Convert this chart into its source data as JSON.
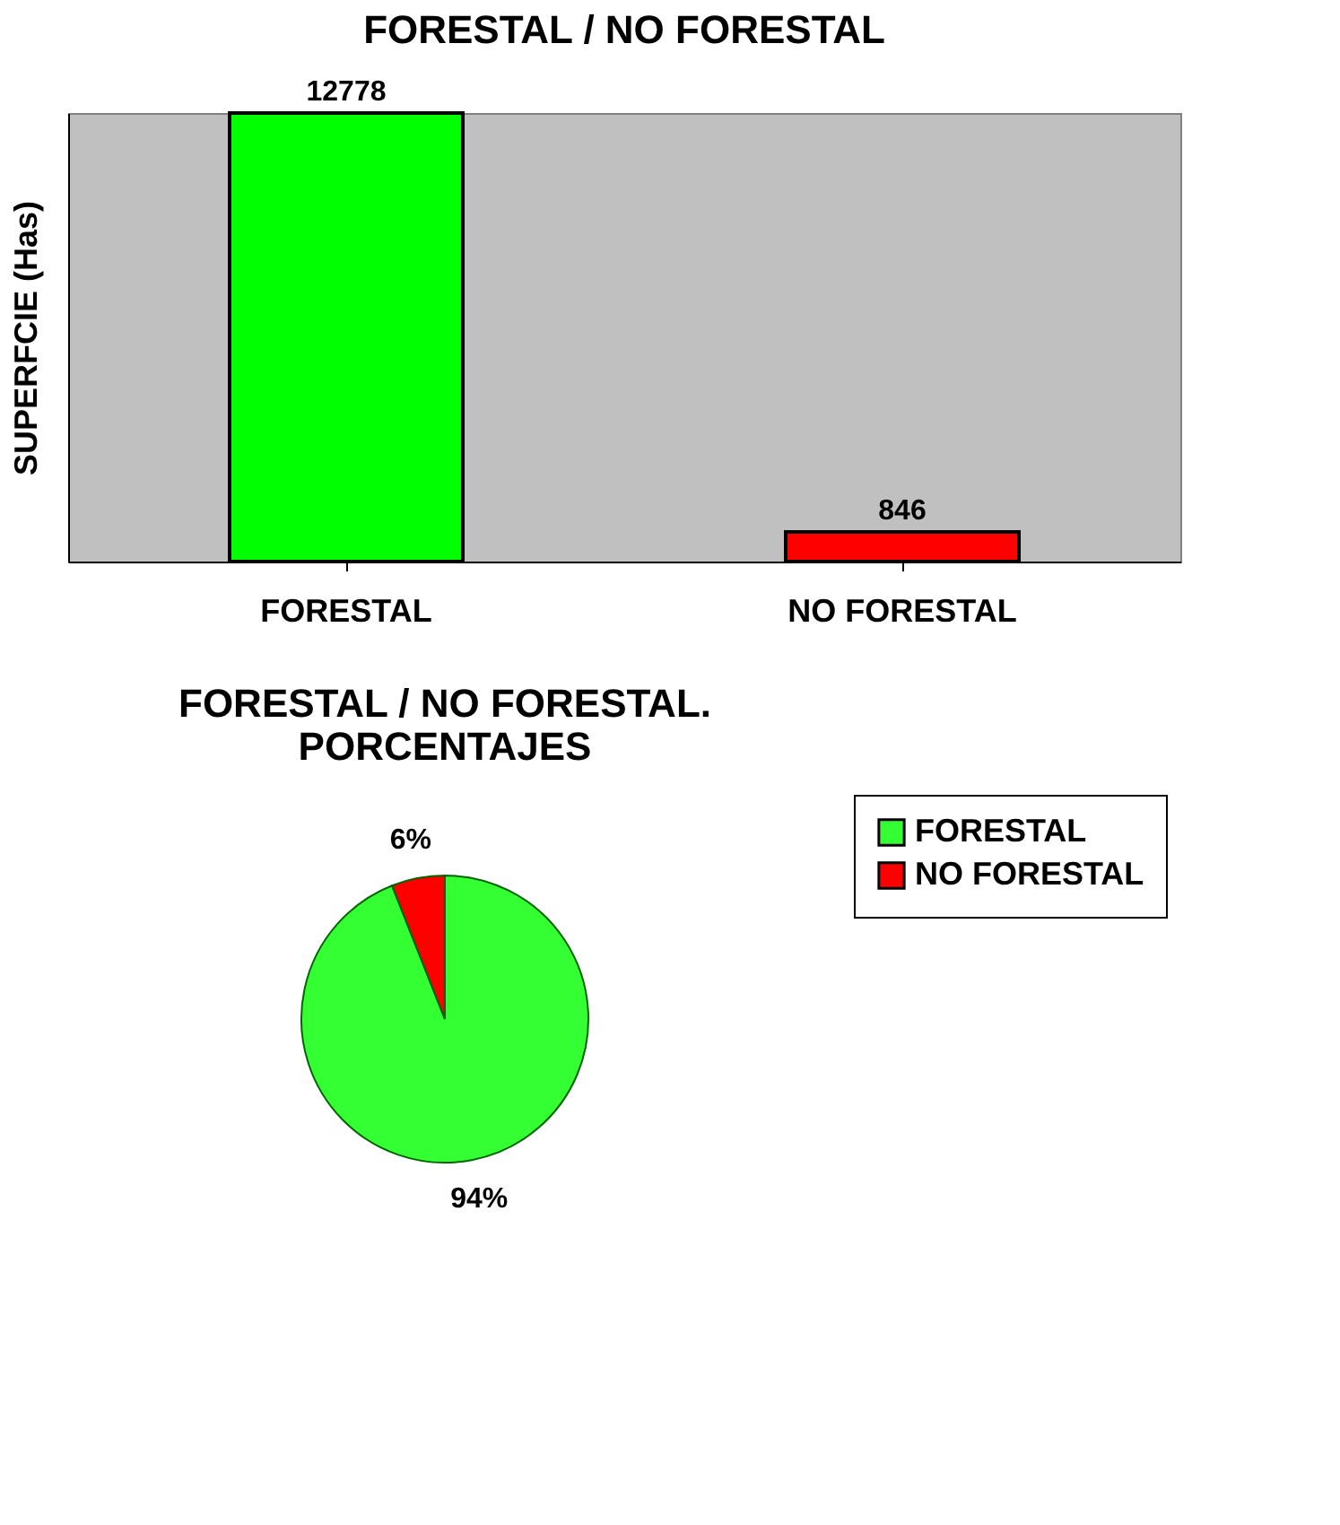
{
  "chart_data": [
    {
      "type": "bar",
      "title": "FORESTAL / NO FORESTAL",
      "ylabel": "SUPERFCIE (Has)",
      "categories": [
        "FORESTAL",
        "NO FORESTAL"
      ],
      "values": [
        12778,
        846
      ],
      "colors": [
        "#00ff00",
        "#ff0000"
      ],
      "data_labels": true,
      "tick_labels": "x",
      "grid": false,
      "legend": false
    },
    {
      "type": "pie",
      "title": [
        "FORESTAL / NO FORESTAL.",
        "PORCENTAJES"
      ],
      "categories": [
        "FORESTAL",
        "NO FORESTAL"
      ],
      "values": [
        94,
        6
      ],
      "colors": [
        "#33ff33",
        "#ff0000"
      ],
      "value_labels": [
        "94%",
        "6%"
      ],
      "legend": "right"
    }
  ]
}
